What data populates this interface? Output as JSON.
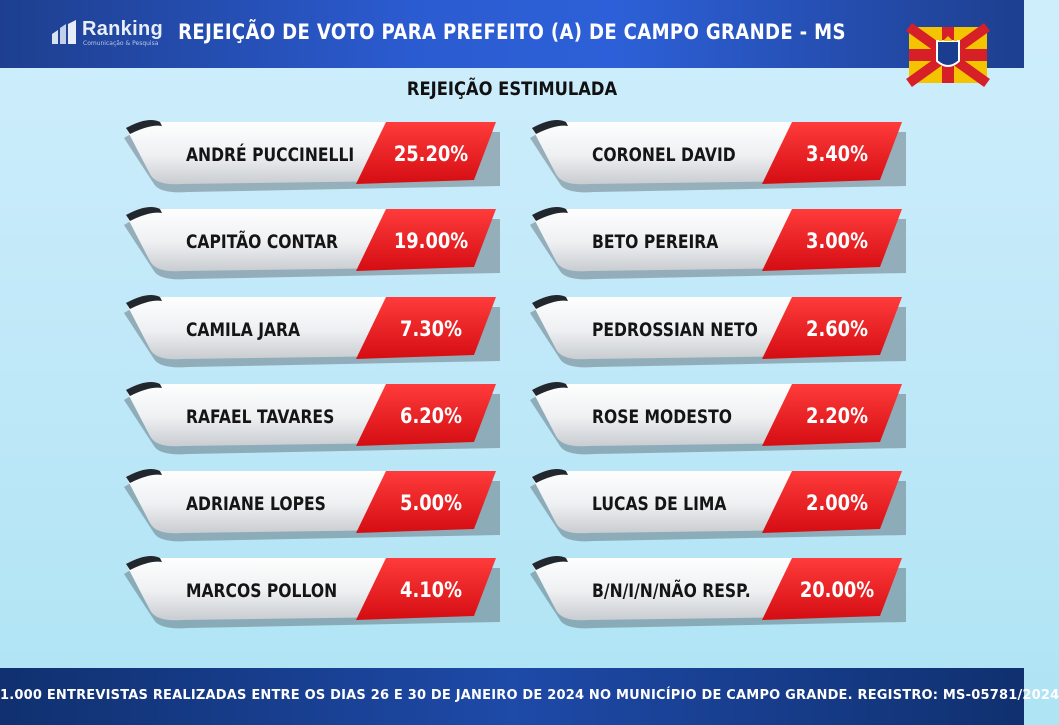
{
  "brand": {
    "name": "Ranking",
    "tagline": "Comunicação & Pesquisa"
  },
  "title": "REJEIÇÃO DE VOTO PARA PREFEITO (A) DE CAMPO GRANDE - MS",
  "chart_data": {
    "type": "table",
    "title": "REJEIÇÃO ESTIMULADA",
    "unit": "%",
    "entries": [
      {
        "name": "ANDRÉ PUCCINELLI",
        "value": 25.2,
        "label": "25.20%"
      },
      {
        "name": "CAPITÃO CONTAR",
        "value": 19.0,
        "label": "19.00%"
      },
      {
        "name": "CAMILA JARA",
        "value": 7.3,
        "label": "7.30%"
      },
      {
        "name": "RAFAEL TAVARES",
        "value": 6.2,
        "label": "6.20%"
      },
      {
        "name": "ADRIANE LOPES",
        "value": 5.0,
        "label": "5.00%"
      },
      {
        "name": "MARCOS POLLON",
        "value": 4.1,
        "label": "4.10%"
      },
      {
        "name": "CORONEL DAVID",
        "value": 3.4,
        "label": "3.40%"
      },
      {
        "name": "BETO PEREIRA",
        "value": 3.0,
        "label": "3.00%"
      },
      {
        "name": "PEDROSSIAN NETO",
        "value": 2.6,
        "label": "2.60%"
      },
      {
        "name": "ROSE MODESTO",
        "value": 2.2,
        "label": "2.20%"
      },
      {
        "name": "LUCAS DE LIMA",
        "value": 2.0,
        "label": "2.00%"
      },
      {
        "name": "B/N/I/N/NÃO RESP.",
        "value": 20.0,
        "label": "20.00%"
      }
    ]
  },
  "footer": "1.000 ENTREVISTAS REALIZADAS ENTRE OS DIAS 26 E 30 DE JANEIRO DE 2024 NO MUNICÍPIO DE CAMPO GRANDE. REGISTRO: MS-05781/2024",
  "colors": {
    "accent_red": "#e8141b",
    "header_blue": "#2b5bd0",
    "background": "#bfe8f8"
  }
}
